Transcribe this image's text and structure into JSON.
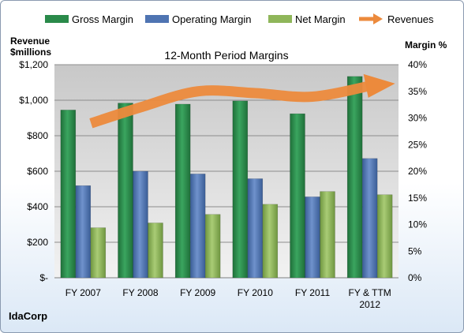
{
  "chart_data": {
    "type": "bar",
    "title": "12-Month Period Margins",
    "company": "IdaCorp",
    "left_axis_title": [
      "Revenue",
      "$millions"
    ],
    "right_axis_title": "Margin %",
    "categories": [
      [
        "FY 2007"
      ],
      [
        "FY 2008"
      ],
      [
        "FY 2009"
      ],
      [
        "FY 2010"
      ],
      [
        "FY 2011"
      ],
      [
        "FY & TTM",
        "2012"
      ]
    ],
    "left_ticks": [
      "$-",
      "$200",
      "$400",
      "$600",
      "$800",
      "$1,000",
      "$1,200"
    ],
    "right_ticks": [
      "0%",
      "5%",
      "10%",
      "15%",
      "20%",
      "25%",
      "30%",
      "35%",
      "40%"
    ],
    "left_ylim": [
      0,
      1200
    ],
    "right_ylim": [
      0,
      40
    ],
    "grid": true,
    "legend_position": "top",
    "series": [
      {
        "name": "Gross Margin",
        "type": "bar",
        "axis": "right",
        "color": "#2a8a4a",
        "values": [
          31.5,
          32.8,
          32.6,
          33.2,
          30.8,
          37.8
        ]
      },
      {
        "name": "Operating Margin",
        "type": "bar",
        "axis": "right",
        "color": "#4f74b2",
        "values": [
          17.3,
          20.0,
          19.5,
          18.6,
          15.2,
          22.4
        ]
      },
      {
        "name": "Net Margin",
        "type": "bar",
        "axis": "right",
        "color": "#8fb65a",
        "values": [
          9.4,
          10.3,
          11.9,
          13.8,
          16.2,
          15.6
        ]
      },
      {
        "name": "Revenues",
        "type": "trend-arrow",
        "axis": "left",
        "color": "#ec8a3c",
        "values": [
          870,
          960,
          1050,
          1040,
          1020,
          1085
        ]
      }
    ]
  }
}
